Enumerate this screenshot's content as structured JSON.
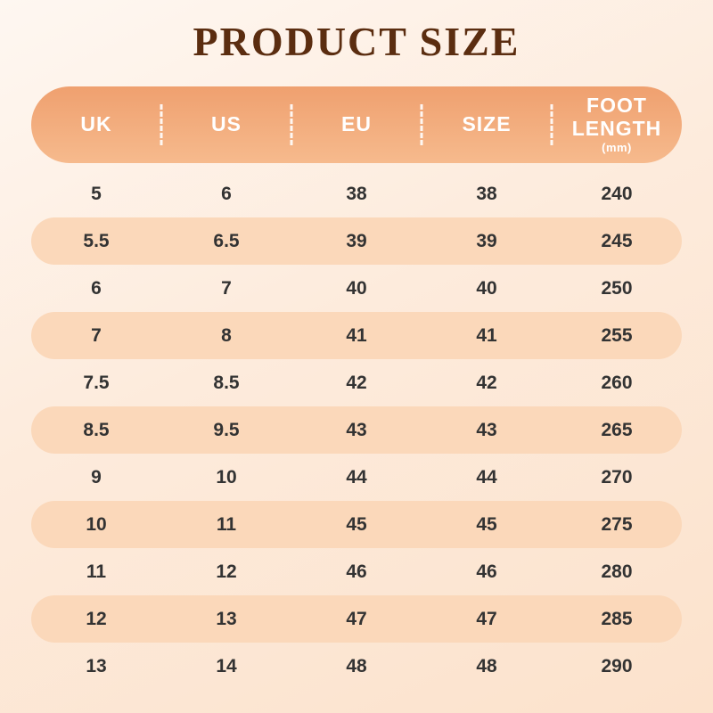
{
  "page": {
    "title": "PRODUCT SIZE"
  },
  "colors": {
    "bg_start": "#fef7f1",
    "bg_mid": "#fdebdc",
    "bg_end": "#fce2cc",
    "title_color": "#5b2d10",
    "header_grad_start": "#efa06f",
    "header_grad_end": "#f6ba8d",
    "header_text_color": "#ffffff",
    "row_alt_bg": "#fbd8ba",
    "cell_text_color": "#333333"
  },
  "chart_data": {
    "type": "table",
    "title": "PRODUCT SIZE",
    "columns": [
      {
        "label": "UK"
      },
      {
        "label": "US"
      },
      {
        "label": "EU"
      },
      {
        "label": "SIZE"
      },
      {
        "label": "FOOT LENGTH",
        "unit": "(mm)"
      }
    ],
    "rows": [
      [
        "5",
        "6",
        "38",
        "38",
        "240"
      ],
      [
        "5.5",
        "6.5",
        "39",
        "39",
        "245"
      ],
      [
        "6",
        "7",
        "40",
        "40",
        "250"
      ],
      [
        "7",
        "8",
        "41",
        "41",
        "255"
      ],
      [
        "7.5",
        "8.5",
        "42",
        "42",
        "260"
      ],
      [
        "8.5",
        "9.5",
        "43",
        "43",
        "265"
      ],
      [
        "9",
        "10",
        "44",
        "44",
        "270"
      ],
      [
        "10",
        "11",
        "45",
        "45",
        "275"
      ],
      [
        "11",
        "12",
        "46",
        "46",
        "280"
      ],
      [
        "12",
        "13",
        "47",
        "47",
        "285"
      ],
      [
        "13",
        "14",
        "48",
        "48",
        "290"
      ]
    ],
    "layout": {
      "alternating_row_highlight": "even rows (2nd, 4th, ...) have peach pill background",
      "header_shape": "fully rounded pill with dashed white column separators"
    }
  }
}
